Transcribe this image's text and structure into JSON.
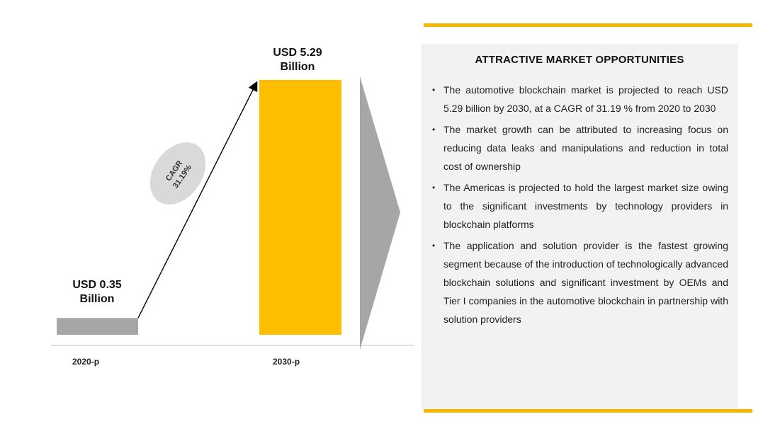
{
  "chart_data": {
    "type": "bar",
    "categories": [
      "2020-p",
      "2030-p"
    ],
    "values": [
      0.35,
      5.29
    ],
    "unit": "USD Billion",
    "value_labels": [
      {
        "line1": "USD  0.35",
        "line2": "Billion"
      },
      {
        "line1": "USD 5.29",
        "line2": "Billion"
      }
    ],
    "bar_colors": [
      "#a6a6a6",
      "#fdbe00"
    ],
    "growth_badge": {
      "line1": "CAGR",
      "line2": "31.19%"
    },
    "ylim": [
      0,
      5.29
    ]
  },
  "panel": {
    "title": "ATTRACTIVE  MARKET OPPORTUNITIES",
    "bullets": [
      "The automotive blockchain market is projected to reach USD 5.29 billion by 2030, at a CAGR of 31.19 % from 2020 to 2030",
      "The market growth can be attributed to increasing focus on reducing data leaks and manipulations and reduction in total cost of ownership",
      "The Americas is projected to hold the largest market size owing to the significant investments by technology providers in blockchain platforms",
      "The application and solution provider is the fastest growing segment because of the introduction of technologically advanced blockchain solutions and significant investment by OEMs and Tier I companies in the automotive blockchain in partnership with solution providers"
    ]
  },
  "colors": {
    "accent_gold": "#f5b800",
    "arrow_gray": "#a6a6a6",
    "badge_gray": "#d9d9d9",
    "panel_bg": "#f2f2f2"
  }
}
